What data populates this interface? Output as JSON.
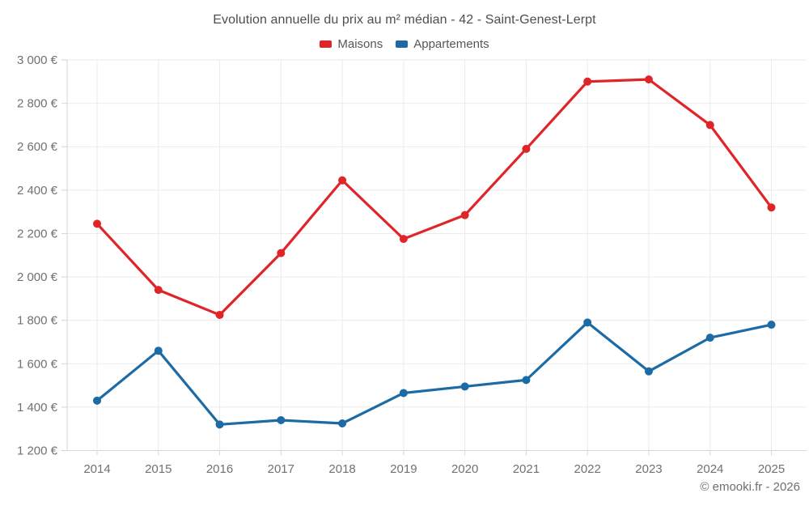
{
  "footer": {
    "credit": "© emooki.fr - 2026"
  },
  "chart_data": {
    "type": "line",
    "title": "Evolution annuelle du prix au m² médian - 42 - Saint-Genest-Lerpt",
    "x": [
      2014,
      2015,
      2016,
      2017,
      2018,
      2019,
      2020,
      2021,
      2022,
      2023,
      2024,
      2025
    ],
    "xtick_labels": [
      "2014",
      "2015",
      "2016",
      "2017",
      "2018",
      "2019",
      "2020",
      "2021",
      "2022",
      "2023",
      "2024",
      "2025"
    ],
    "series": [
      {
        "name": "Maisons",
        "color": "#e02529",
        "values": [
          2245,
          1940,
          1825,
          2110,
          2445,
          2175,
          2285,
          2590,
          2900,
          2910,
          2700,
          2320
        ]
      },
      {
        "name": "Appartements",
        "color": "#1c6ba5",
        "values": [
          1430,
          1660,
          1320,
          1340,
          1325,
          1465,
          1495,
          1525,
          1790,
          1565,
          1720,
          1780
        ]
      }
    ],
    "ylim": [
      1200,
      3000
    ],
    "ytick_step": 200,
    "ytick_values": [
      3000,
      2800,
      2600,
      2400,
      2200,
      2000,
      1800,
      1600,
      1400,
      1200
    ],
    "ytick_labels": [
      "3 000 €",
      "2 800 €",
      "2 600 €",
      "2 400 €",
      "2 200 €",
      "2 000 €",
      "1 800 €",
      "1 600 €",
      "1 400 €",
      "1 200 €"
    ],
    "xlabel": "",
    "ylabel": "",
    "currency": "€",
    "grid": true,
    "legend_position": "top"
  }
}
